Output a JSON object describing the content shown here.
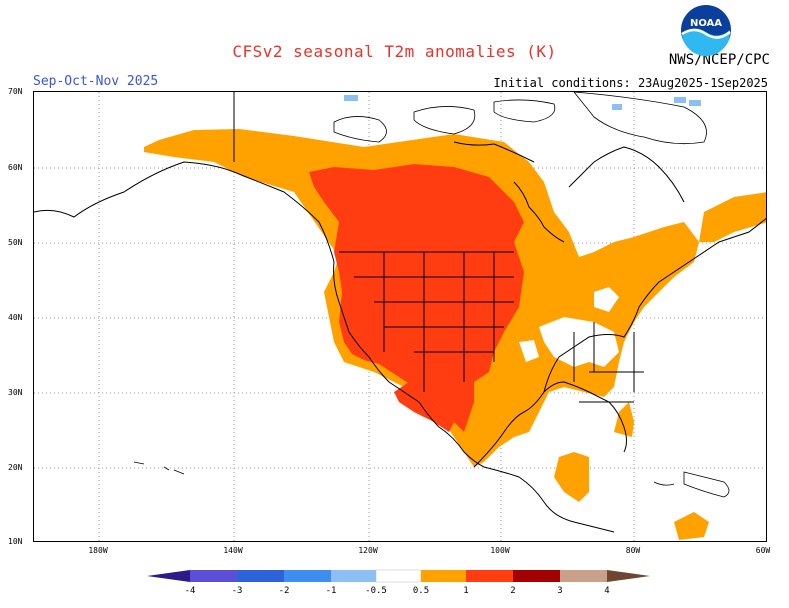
{
  "title": "CFSv2 seasonal T2m anomalies (K)",
  "season": "Sep-Oct-Nov 2025",
  "initial_conditions": "Initial conditions: 23Aug2025-1Sep2025",
  "agency": "NWS/NCEP/CPC",
  "logo_text": "NOAA",
  "lat_labels": [
    "70N",
    "60N",
    "50N",
    "40N",
    "30N",
    "20N",
    "10N"
  ],
  "lon_labels": [
    "180W",
    "140W",
    "120W",
    "100W",
    "80W",
    "60W"
  ],
  "legend": {
    "ticks": [
      "-4",
      "-3",
      "-2",
      "-1",
      "-0.5",
      "0.5",
      "1",
      "2",
      "3",
      "4"
    ],
    "colors": [
      "#2a1a8a",
      "#5b4fd6",
      "#2c63d9",
      "#3d8ef0",
      "#8cc0f5",
      "#ffffff",
      "#ffa200",
      "#ff3d10",
      "#a30000",
      "#c9a08a",
      "#6e4632"
    ]
  },
  "colors": {
    "orange": "#ffa200",
    "red": "#ff3d10",
    "light_blue": "#8cc0f5"
  }
}
